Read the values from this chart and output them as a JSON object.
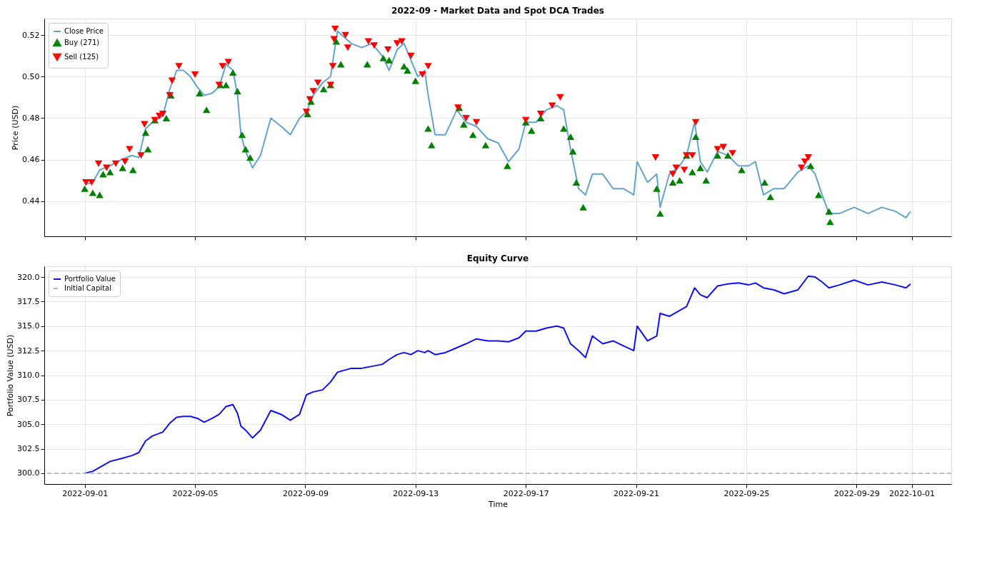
{
  "chart_data": [
    {
      "type": "line",
      "title": "2022-09 - Market Data and Spot DCA Trades",
      "ylabel": "Price (USD)",
      "xlim": [
        "2022-08-30T12:45",
        "2022-10-02T10:30"
      ],
      "xticks": [
        "2022-09-01",
        "2022-09-05",
        "2022-09-09",
        "2022-09-13",
        "2022-09-17",
        "2022-09-21",
        "2022-09-25",
        "2022-09-29",
        "2022-10-01"
      ],
      "ylim": [
        0.423,
        0.528
      ],
      "yticks": [
        {
          "value": 0.44,
          "label": "0.44"
        },
        {
          "value": 0.46,
          "label": "0.46"
        },
        {
          "value": 0.48,
          "label": "0.48"
        },
        {
          "value": 0.5,
          "label": "0.50"
        },
        {
          "value": 0.52,
          "label": "0.52"
        }
      ],
      "tick_labels": "y",
      "grid": true,
      "legend": "top left",
      "x": [
        "2022-09-01T00:00",
        "2022-09-01T07:00",
        "2022-09-01T13:00",
        "2022-09-01T22:00",
        "2022-09-02T08:00",
        "2022-09-02T17:00",
        "2022-09-02T23:00",
        "2022-09-03T05:00",
        "2022-09-03T11:00",
        "2022-09-03T20:00",
        "2022-09-04T02:00",
        "2022-09-04T08:00",
        "2022-09-04T14:00",
        "2022-09-04T20:00",
        "2022-09-05T02:00",
        "2022-09-05T08:00",
        "2022-09-05T15:00",
        "2022-09-05T21:00",
        "2022-09-06T03:00",
        "2022-09-06T09:00",
        "2022-09-06T13:00",
        "2022-09-06T16:00",
        "2022-09-06T20:00",
        "2022-09-07T02:00",
        "2022-09-07T09:00",
        "2022-09-07T18:00",
        "2022-09-08T03:00",
        "2022-09-08T11:00",
        "2022-09-08T19:00",
        "2022-09-09T01:00",
        "2022-09-09T07:00",
        "2022-09-09T15:00",
        "2022-09-09T22:00",
        "2022-09-10T04:00",
        "2022-09-10T10:00",
        "2022-09-10T16:00",
        "2022-09-11T01:00",
        "2022-09-11T10:00",
        "2022-09-11T19:00",
        "2022-09-12T01:00",
        "2022-09-12T08:00",
        "2022-09-12T14:00",
        "2022-09-12T20:00",
        "2022-09-13T02:00",
        "2022-09-13T08:00",
        "2022-09-13T11:00",
        "2022-09-13T17:00",
        "2022-09-14T02:00",
        "2022-09-14T12:00",
        "2022-09-14T20:00",
        "2022-09-15T05:00",
        "2022-09-15T15:00",
        "2022-09-16T00:00",
        "2022-09-16T09:00",
        "2022-09-16T18:00",
        "2022-09-17T00:00",
        "2022-09-17T09:00",
        "2022-09-17T18:00",
        "2022-09-18T03:00",
        "2022-09-18T09:00",
        "2022-09-18T15:00",
        "2022-09-18T22:00",
        "2022-09-19T04:00",
        "2022-09-19T10:00",
        "2022-09-19T19:00",
        "2022-09-20T04:00",
        "2022-09-20T13:00",
        "2022-09-20T22:00",
        "2022-09-21T01:00",
        "2022-09-21T10:00",
        "2022-09-21T18:00",
        "2022-09-21T21:00",
        "2022-09-22T05:00",
        "2022-09-22T14:00",
        "2022-09-22T20:00",
        "2022-09-23T03:00",
        "2022-09-23T08:00",
        "2022-09-23T14:00",
        "2022-09-23T23:00",
        "2022-09-24T08:00",
        "2022-09-24T17:00",
        "2022-09-25T02:00",
        "2022-09-25T08:00",
        "2022-09-25T15:00",
        "2022-09-26T00:00",
        "2022-09-26T09:00",
        "2022-09-26T21:00",
        "2022-09-27T06:00",
        "2022-09-27T12:00",
        "2022-09-27T18:00",
        "2022-09-28T00:00",
        "2022-09-28T09:00",
        "2022-09-28T22:00",
        "2022-09-29T10:00",
        "2022-09-29T22:00",
        "2022-09-30T10:00",
        "2022-09-30T19:00",
        "2022-09-30T23:00"
      ],
      "series": [
        {
          "name": "Close Price",
          "color": "#5a9fcc",
          "values": [
            0.448,
            0.449,
            0.455,
            0.457,
            0.46,
            0.462,
            0.461,
            0.475,
            0.478,
            0.481,
            0.494,
            0.503,
            0.503,
            0.5,
            0.495,
            0.491,
            0.492,
            0.495,
            0.506,
            0.503,
            0.491,
            0.472,
            0.464,
            0.456,
            0.462,
            0.48,
            0.476,
            0.472,
            0.48,
            0.483,
            0.491,
            0.497,
            0.5,
            0.522,
            0.519,
            0.516,
            0.514,
            0.516,
            0.51,
            0.503,
            0.513,
            0.516,
            0.508,
            0.5,
            0.503,
            0.491,
            0.472,
            0.472,
            0.484,
            0.478,
            0.476,
            0.47,
            0.468,
            0.459,
            0.465,
            0.478,
            0.478,
            0.484,
            0.486,
            0.484,
            0.465,
            0.446,
            0.443,
            0.453,
            0.453,
            0.446,
            0.446,
            0.443,
            0.459,
            0.449,
            0.453,
            0.437,
            0.453,
            0.457,
            0.462,
            0.478,
            0.459,
            0.454,
            0.464,
            0.462,
            0.457,
            0.457,
            0.459,
            0.443,
            0.446,
            0.446,
            0.454,
            0.457,
            0.453,
            0.443,
            0.434,
            0.434,
            0.437,
            0.434,
            0.437,
            0.435,
            0.432,
            0.435
          ]
        },
        {
          "name": "Buy (271)",
          "type": "scatter",
          "marker": "triangle",
          "color": "#008000",
          "x": [
            "2022-09-01T00:00",
            "2022-09-01T07:00",
            "2022-09-01T13:00",
            "2022-09-01T16:00",
            "2022-09-01T22:00",
            "2022-09-02T09:00",
            "2022-09-02T18:00",
            "2022-09-03T05:00",
            "2022-09-03T07:00",
            "2022-09-03T13:00",
            "2022-09-03T23:00",
            "2022-09-04T03:00",
            "2022-09-05T04:00",
            "2022-09-05T10:00",
            "2022-09-05T22:00",
            "2022-09-06T03:00",
            "2022-09-06T09:00",
            "2022-09-06T13:00",
            "2022-09-06T17:00",
            "2022-09-06T20:00",
            "2022-09-07T00:00",
            "2022-09-09T02:00",
            "2022-09-09T05:00",
            "2022-09-09T16:00",
            "2022-09-09T22:00",
            "2022-09-10T03:00",
            "2022-09-10T07:00",
            "2022-09-11T06:00",
            "2022-09-11T20:00",
            "2022-09-12T01:00",
            "2022-09-12T14:00",
            "2022-09-12T17:00",
            "2022-09-13T00:00",
            "2022-09-13T11:00",
            "2022-09-13T14:00",
            "2022-09-14T14:00",
            "2022-09-14T18:00",
            "2022-09-15T02:00",
            "2022-09-15T13:00",
            "2022-09-16T08:00",
            "2022-09-17T00:00",
            "2022-09-17T05:00",
            "2022-09-17T13:00",
            "2022-09-18T09:00",
            "2022-09-18T15:00",
            "2022-09-18T17:00",
            "2022-09-18T20:00",
            "2022-09-19T02:00",
            "2022-09-21T18:00",
            "2022-09-21T21:00",
            "2022-09-22T08:00",
            "2022-09-22T14:00",
            "2022-09-22T20:00",
            "2022-09-23T01:00",
            "2022-09-23T04:00",
            "2022-09-23T08:00",
            "2022-09-23T13:00",
            "2022-09-23T23:00",
            "2022-09-24T08:00",
            "2022-09-24T20:00",
            "2022-09-25T16:00",
            "2022-09-25T21:00",
            "2022-09-27T08:00",
            "2022-09-27T15:00",
            "2022-09-28T00:00",
            "2022-09-28T01:00"
          ],
          "values": [
            0.446,
            0.444,
            0.443,
            0.453,
            0.454,
            0.456,
            0.455,
            0.473,
            0.465,
            0.479,
            0.48,
            0.491,
            0.492,
            0.484,
            0.496,
            0.496,
            0.502,
            0.493,
            0.472,
            0.465,
            0.461,
            0.482,
            0.488,
            0.494,
            0.496,
            0.517,
            0.506,
            0.506,
            0.509,
            0.508,
            0.505,
            0.503,
            0.498,
            0.475,
            0.467,
            0.485,
            0.477,
            0.472,
            0.467,
            0.457,
            0.478,
            0.474,
            0.48,
            0.475,
            0.471,
            0.464,
            0.449,
            0.437,
            0.446,
            0.434,
            0.449,
            0.45,
            0.462,
            0.454,
            0.471,
            0.456,
            0.45,
            0.462,
            0.462,
            0.455,
            0.449,
            0.442,
            0.457,
            0.443,
            0.435,
            0.43
          ]
        },
        {
          "name": "Sell (125)",
          "type": "scatter",
          "marker": "triangle-down",
          "color": "#ff0000",
          "x": [
            "2022-09-01T01:00",
            "2022-09-01T06:00",
            "2022-09-01T12:00",
            "2022-09-01T19:00",
            "2022-09-02T03:00",
            "2022-09-02T11:00",
            "2022-09-02T15:00",
            "2022-09-03T01:00",
            "2022-09-03T04:00",
            "2022-09-03T13:00",
            "2022-09-03T17:00",
            "2022-09-03T20:00",
            "2022-09-04T02:00",
            "2022-09-04T04:00",
            "2022-09-04T10:00",
            "2022-09-05T00:00",
            "2022-09-05T21:00",
            "2022-09-06T00:00",
            "2022-09-06T05:00",
            "2022-09-09T01:00",
            "2022-09-09T04:00",
            "2022-09-09T07:00",
            "2022-09-09T11:00",
            "2022-09-09T22:00",
            "2022-09-10T00:00",
            "2022-09-10T01:00",
            "2022-09-10T02:00",
            "2022-09-10T11:00",
            "2022-09-10T13:00",
            "2022-09-11T07:00",
            "2022-09-11T12:00",
            "2022-09-12T00:00",
            "2022-09-12T08:00",
            "2022-09-12T12:00",
            "2022-09-12T20:00",
            "2022-09-13T06:00",
            "2022-09-13T11:00",
            "2022-09-14T13:00",
            "2022-09-14T20:00",
            "2022-09-15T05:00",
            "2022-09-17T00:00",
            "2022-09-17T13:00",
            "2022-09-17T23:00",
            "2022-09-18T06:00",
            "2022-09-21T17:00",
            "2022-09-22T08:00",
            "2022-09-22T11:00",
            "2022-09-22T18:00",
            "2022-09-22T20:00",
            "2022-09-23T01:00",
            "2022-09-23T04:00",
            "2022-09-23T23:00",
            "2022-09-24T04:00",
            "2022-09-24T12:00",
            "2022-09-27T00:00",
            "2022-09-27T03:00",
            "2022-09-27T06:00"
          ],
          "values": [
            0.449,
            0.449,
            0.458,
            0.456,
            0.458,
            0.459,
            0.465,
            0.462,
            0.477,
            0.479,
            0.481,
            0.482,
            0.491,
            0.498,
            0.505,
            0.501,
            0.496,
            0.505,
            0.507,
            0.483,
            0.489,
            0.493,
            0.497,
            0.496,
            0.505,
            0.518,
            0.523,
            0.52,
            0.514,
            0.517,
            0.515,
            0.513,
            0.516,
            0.517,
            0.51,
            0.501,
            0.505,
            0.485,
            0.48,
            0.478,
            0.479,
            0.482,
            0.486,
            0.49,
            0.461,
            0.453,
            0.456,
            0.455,
            0.462,
            0.462,
            0.478,
            0.465,
            0.466,
            0.463,
            0.456,
            0.459,
            0.461
          ]
        }
      ]
    },
    {
      "type": "line",
      "title": "Equity Curve",
      "xlabel": "Time",
      "ylabel": "Portfolio Value (USD)",
      "xlim": [
        "2022-08-30T12:45",
        "2022-10-02T10:30"
      ],
      "xticks": [
        "2022-09-01",
        "2022-09-05",
        "2022-09-09",
        "2022-09-13",
        "2022-09-17",
        "2022-09-21",
        "2022-09-25",
        "2022-09-29",
        "2022-10-01"
      ],
      "ylim": [
        298.9,
        321.1
      ],
      "yticks": [
        {
          "value": 300,
          "label": "300.0"
        },
        {
          "value": 302.5,
          "label": "302.5"
        },
        {
          "value": 305,
          "label": "305.0"
        },
        {
          "value": 307.5,
          "label": "307.5"
        },
        {
          "value": 310,
          "label": "310.0"
        },
        {
          "value": 312.5,
          "label": "312.5"
        },
        {
          "value": 315,
          "label": "315.0"
        },
        {
          "value": 317.5,
          "label": "317.5"
        },
        {
          "value": 320,
          "label": "320.0"
        }
      ],
      "grid": true,
      "legend": "top left",
      "x": [
        "2022-09-01T00:00",
        "2022-09-01T07:00",
        "2022-09-01T13:00",
        "2022-09-01T22:00",
        "2022-09-02T08:00",
        "2022-09-02T17:00",
        "2022-09-02T23:00",
        "2022-09-03T05:00",
        "2022-09-03T11:00",
        "2022-09-03T20:00",
        "2022-09-04T02:00",
        "2022-09-04T08:00",
        "2022-09-04T14:00",
        "2022-09-04T20:00",
        "2022-09-05T02:00",
        "2022-09-05T08:00",
        "2022-09-05T15:00",
        "2022-09-05T21:00",
        "2022-09-06T03:00",
        "2022-09-06T09:00",
        "2022-09-06T13:00",
        "2022-09-06T16:00",
        "2022-09-06T20:00",
        "2022-09-07T02:00",
        "2022-09-07T09:00",
        "2022-09-07T18:00",
        "2022-09-08T03:00",
        "2022-09-08T11:00",
        "2022-09-08T19:00",
        "2022-09-09T01:00",
        "2022-09-09T07:00",
        "2022-09-09T15:00",
        "2022-09-09T22:00",
        "2022-09-10T04:00",
        "2022-09-10T10:00",
        "2022-09-10T16:00",
        "2022-09-11T01:00",
        "2022-09-11T10:00",
        "2022-09-11T19:00",
        "2022-09-12T01:00",
        "2022-09-12T08:00",
        "2022-09-12T14:00",
        "2022-09-12T20:00",
        "2022-09-13T02:00",
        "2022-09-13T08:00",
        "2022-09-13T11:00",
        "2022-09-13T17:00",
        "2022-09-14T02:00",
        "2022-09-14T12:00",
        "2022-09-14T20:00",
        "2022-09-15T05:00",
        "2022-09-15T15:00",
        "2022-09-16T00:00",
        "2022-09-16T09:00",
        "2022-09-16T18:00",
        "2022-09-17T00:00",
        "2022-09-17T09:00",
        "2022-09-17T18:00",
        "2022-09-18T03:00",
        "2022-09-18T09:00",
        "2022-09-18T15:00",
        "2022-09-18T22:00",
        "2022-09-19T04:00",
        "2022-09-19T10:00",
        "2022-09-19T19:00",
        "2022-09-20T04:00",
        "2022-09-20T13:00",
        "2022-09-20T22:00",
        "2022-09-21T01:00",
        "2022-09-21T10:00",
        "2022-09-21T18:00",
        "2022-09-21T21:00",
        "2022-09-22T05:00",
        "2022-09-22T14:00",
        "2022-09-22T20:00",
        "2022-09-23T03:00",
        "2022-09-23T08:00",
        "2022-09-23T14:00",
        "2022-09-23T23:00",
        "2022-09-24T08:00",
        "2022-09-24T17:00",
        "2022-09-25T02:00",
        "2022-09-25T08:00",
        "2022-09-25T15:00",
        "2022-09-26T00:00",
        "2022-09-26T09:00",
        "2022-09-26T21:00",
        "2022-09-27T06:00",
        "2022-09-27T12:00",
        "2022-09-27T18:00",
        "2022-09-28T00:00",
        "2022-09-28T09:00",
        "2022-09-28T22:00",
        "2022-09-29T10:00",
        "2022-09-29T22:00",
        "2022-09-30T10:00",
        "2022-09-30T19:00",
        "2022-09-30T23:00"
      ],
      "series": [
        {
          "name": "Portfolio Value",
          "color": "#0000ff",
          "values": [
            300.0,
            300.2,
            300.6,
            301.2,
            301.5,
            301.8,
            302.1,
            303.3,
            303.8,
            304.2,
            305.1,
            305.7,
            305.8,
            305.8,
            305.6,
            305.2,
            305.6,
            306.0,
            306.8,
            307.0,
            306.1,
            304.8,
            304.4,
            303.6,
            304.4,
            306.4,
            306.0,
            305.4,
            306.0,
            308.0,
            308.3,
            308.5,
            309.3,
            310.3,
            310.5,
            310.7,
            310.7,
            310.9,
            311.1,
            311.6,
            312.1,
            312.3,
            312.1,
            312.5,
            312.3,
            312.5,
            312.1,
            312.3,
            312.8,
            313.2,
            313.7,
            313.5,
            313.5,
            313.4,
            313.8,
            314.5,
            314.5,
            314.8,
            315.0,
            314.8,
            313.2,
            312.5,
            311.8,
            314.0,
            313.2,
            313.5,
            313.0,
            312.5,
            315.0,
            313.5,
            314.0,
            316.3,
            316.0,
            316.6,
            317.0,
            318.9,
            318.2,
            317.9,
            319.1,
            319.3,
            319.4,
            319.2,
            319.4,
            318.9,
            318.7,
            318.3,
            318.7,
            320.1,
            320.0,
            319.5,
            318.9,
            319.2,
            319.7,
            319.2,
            319.5,
            319.2,
            318.9,
            319.3
          ]
        }
      ],
      "ref_lines": [
        {
          "axis": "y",
          "value": 300,
          "label": "Initial Capital",
          "color": "#b0b0b0",
          "line_style": "dashed"
        }
      ]
    }
  ]
}
